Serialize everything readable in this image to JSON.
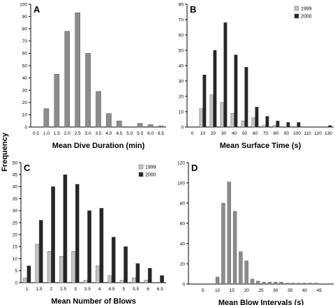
{
  "shared": {
    "ylabel": "Frequency"
  },
  "colors": {
    "gray": "#8c8c8c",
    "lightgray": "#c4c4c4",
    "dark": "#262626"
  },
  "chart_data": [
    {
      "panel": "A",
      "type": "bar",
      "xlabel": "Mean Dive Duration (min)",
      "ylim": [
        0,
        100
      ],
      "yticks": [
        0,
        10,
        20,
        30,
        40,
        50,
        60,
        70,
        80,
        90,
        100
      ],
      "categories": [
        "0.5",
        "1.0",
        "1.5",
        "2.0",
        "2.5",
        "3.0",
        "3.5",
        "4.0",
        "4.5",
        "5.0",
        "5.5",
        "6.0",
        "6.5"
      ],
      "series": [
        {
          "values": [
            0,
            15,
            43,
            78,
            93,
            60,
            29,
            11,
            5,
            0,
            3,
            2,
            1
          ],
          "color": "#8c8c8c"
        }
      ],
      "legend": []
    },
    {
      "panel": "B",
      "type": "bar",
      "xlabel": "Mean Surface Time (s)",
      "ylim": [
        0,
        80
      ],
      "yticks": [
        0,
        10,
        20,
        30,
        40,
        50,
        60,
        70,
        80
      ],
      "categories": [
        "0",
        "10",
        "20",
        "30",
        "40",
        "50",
        "60",
        "70",
        "80",
        "90",
        "100",
        "110",
        "120",
        "130"
      ],
      "series": [
        {
          "name": "1999",
          "values": [
            0,
            12,
            21,
            16,
            9,
            4,
            6,
            1,
            1,
            0,
            0,
            0,
            0,
            0
          ],
          "color": "#c4c4c4"
        },
        {
          "name": "2000",
          "values": [
            0,
            34,
            50,
            68,
            47,
            39,
            13,
            7,
            4,
            3,
            3,
            0,
            0,
            1
          ],
          "color": "#262626"
        }
      ],
      "legend": [
        "1999",
        "2000"
      ]
    },
    {
      "panel": "C",
      "type": "bar",
      "xlabel": "Mean Number of Blows",
      "ylim": [
        0,
        50
      ],
      "yticks": [
        0,
        5,
        10,
        15,
        20,
        25,
        30,
        35,
        40,
        45,
        50
      ],
      "categories": [
        "1",
        "1.5",
        "2",
        "2.5",
        "3",
        "3.5",
        "4",
        "4.5",
        "5",
        "5.5",
        "6",
        "6.5"
      ],
      "series": [
        {
          "name": "1999",
          "values": [
            2,
            16,
            13,
            11,
            13,
            1,
            7,
            3,
            1,
            2,
            1,
            0
          ],
          "color": "#c4c4c4"
        },
        {
          "name": "2000",
          "values": [
            7,
            26,
            40,
            45,
            41,
            30,
            31,
            19,
            15,
            8,
            6,
            3
          ],
          "color": "#262626"
        }
      ],
      "legend": [
        "1999",
        "2000"
      ]
    },
    {
      "panel": "D",
      "type": "bar",
      "xlabel": "Mean Blow Intervals (s)",
      "ylim": [
        0,
        120
      ],
      "yticks": [
        0,
        20,
        40,
        60,
        80,
        100,
        120
      ],
      "categories": [
        "5",
        "10",
        "15",
        "20",
        "25",
        "30",
        "35",
        "40",
        "45"
      ],
      "categoryStep": 5,
      "binWidth": 2,
      "series": [
        {
          "x": [
            10,
            12,
            14,
            16,
            18,
            20,
            22,
            24,
            26,
            28,
            30,
            32,
            34,
            36,
            38,
            40,
            42,
            44
          ],
          "values": [
            7,
            80,
            101,
            72,
            32,
            23,
            5,
            3,
            2,
            2,
            2,
            2,
            1,
            1,
            1,
            1,
            1,
            1
          ],
          "color": "#8c8c8c"
        }
      ],
      "legend": []
    }
  ]
}
